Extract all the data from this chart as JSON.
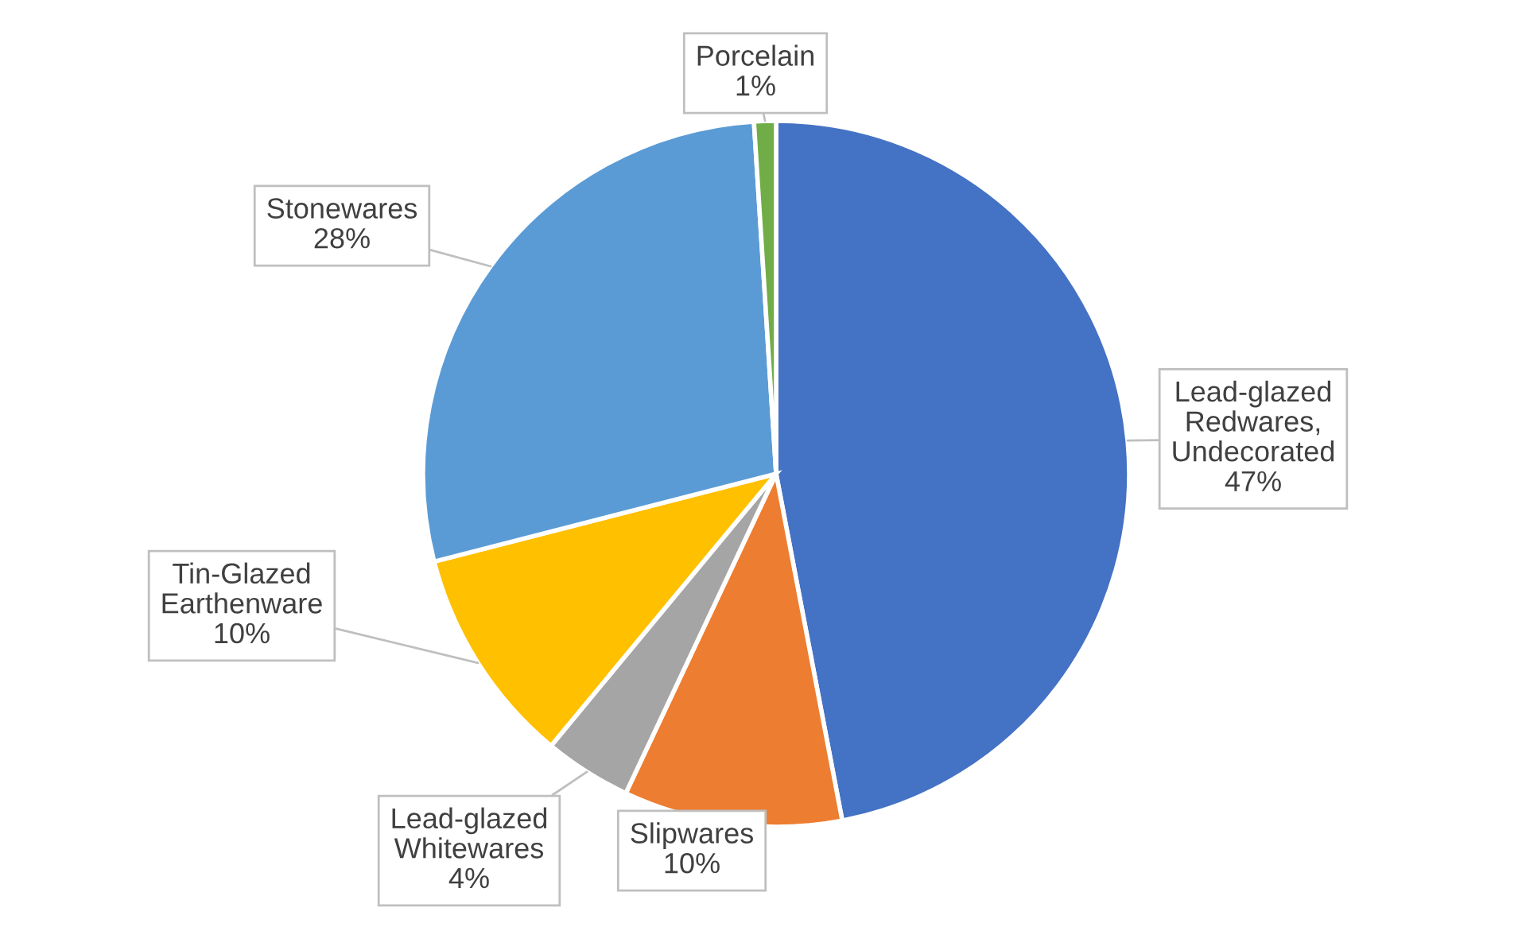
{
  "chart_data": {
    "type": "pie",
    "categories": [
      "Lead-glazed\nRedwares,\nUndecorated",
      "Slipwares",
      "Lead-glazed\nWhitewares",
      "Tin-Glazed\nEarthenware",
      "Stonewares",
      "Porcelain"
    ],
    "values": [
      47,
      10,
      4,
      10,
      28,
      1
    ],
    "colors": [
      "#4472c4",
      "#ed7d31",
      "#a5a5a5",
      "#ffc000",
      "#5b9bd5",
      "#70ad47"
    ],
    "value_labels": [
      "47%",
      "10%",
      "4%",
      "10%",
      "28%",
      "1%"
    ],
    "legend": false
  }
}
